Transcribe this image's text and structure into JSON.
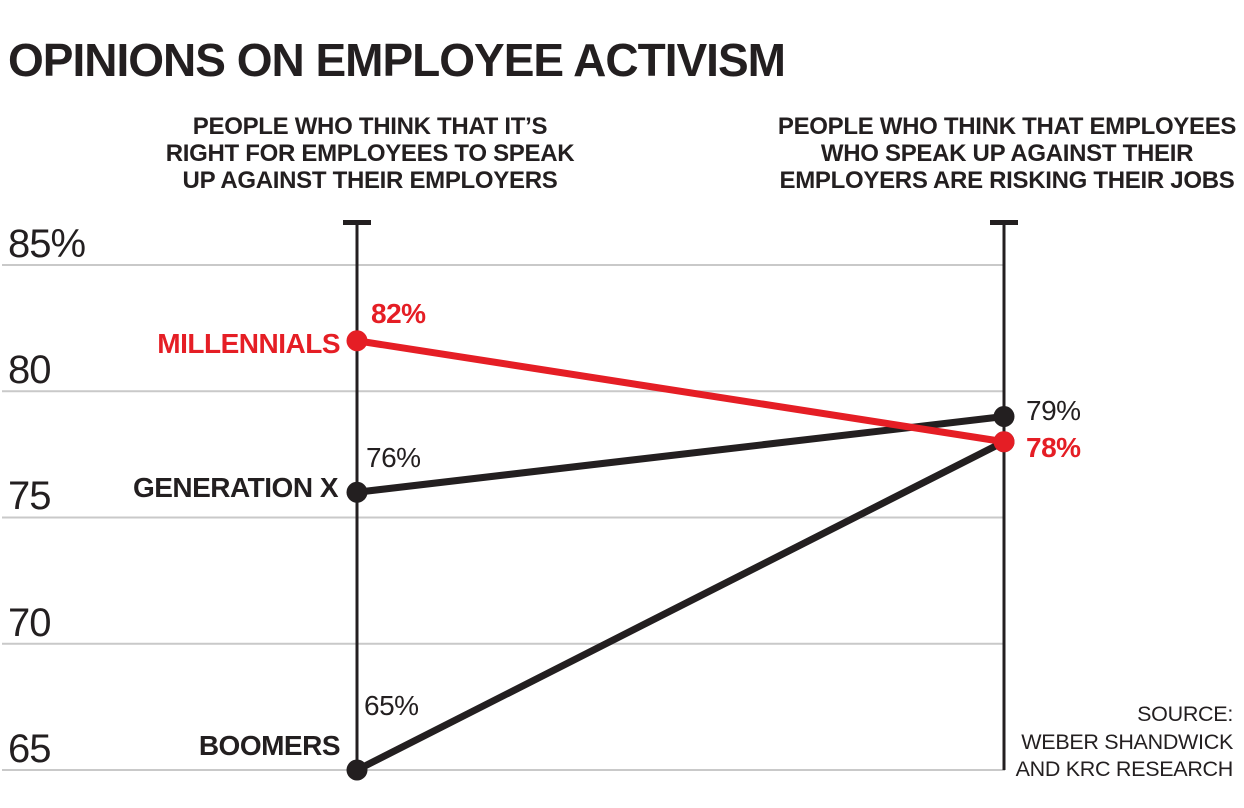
{
  "colors": {
    "red": "#e51e25",
    "black": "#231f20",
    "grid": "#c9c9c9"
  },
  "chart_data": {
    "type": "line",
    "variant": "slopegraph",
    "title": "OPINIONS ON EMPLOYEE ACTIVISM",
    "column_headers": {
      "left": "PEOPLE WHO THINK THAT IT’S\nRIGHT FOR EMPLOYEES TO SPEAK\nUP AGAINST THEIR EMPLOYERS",
      "right": "PEOPLE WHO THINK THAT EMPLOYEES\nWHO SPEAK UP AGAINST THEIR\nEMPLOYERS ARE RISKING THEIR JOBS"
    },
    "y_axis": {
      "ticks": [
        "85%",
        "80",
        "75",
        "70",
        "65"
      ],
      "tick_values": [
        85,
        80,
        75,
        70,
        65
      ],
      "max": 85,
      "min": 65,
      "grid": true
    },
    "series": [
      {
        "name": "MILLENNIALS",
        "values": [
          82,
          78
        ],
        "color": "#e51e25",
        "left_label": "82%",
        "right_label": "78%",
        "emphasis": true
      },
      {
        "name": "GENERATION X",
        "values": [
          76,
          79
        ],
        "color": "#231f20",
        "left_label": "76%",
        "right_label": "79%",
        "emphasis": false
      },
      {
        "name": "BOOMERS",
        "values": [
          65,
          78
        ],
        "color": "#231f20",
        "left_label": "65%",
        "right_label": "",
        "emphasis": false
      }
    ],
    "source": "SOURCE:\nWEBER SHANDWICK\nAND KRC RESEARCH"
  }
}
